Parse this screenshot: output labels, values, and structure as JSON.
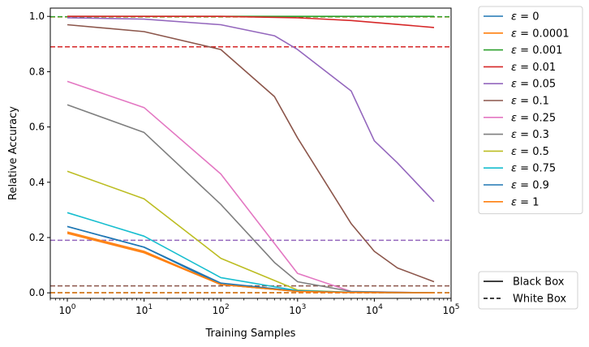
{
  "chart_data": {
    "type": "line",
    "xlabel": "Training Samples",
    "ylabel": "Relative Accuracy",
    "xscale": "log",
    "xlim": [
      0.6,
      100000
    ],
    "ylim": [
      -0.02,
      1.03
    ],
    "grid": false,
    "x_ticks": [
      {
        "value": 1,
        "base": "10",
        "exp": "0"
      },
      {
        "value": 10,
        "base": "10",
        "exp": "1"
      },
      {
        "value": 100,
        "base": "10",
        "exp": "2"
      },
      {
        "value": 1000,
        "base": "10",
        "exp": "3"
      },
      {
        "value": 10000,
        "base": "10",
        "exp": "4"
      },
      {
        "value": 100000,
        "base": "10",
        "exp": "5"
      }
    ],
    "y_ticks": [
      {
        "value": 0.0,
        "label": "0.0"
      },
      {
        "value": 0.2,
        "label": "0.2"
      },
      {
        "value": 0.4,
        "label": "0.4"
      },
      {
        "value": 0.6,
        "label": "0.6"
      },
      {
        "value": 0.8,
        "label": "0.8"
      },
      {
        "value": 1.0,
        "label": "1.0"
      }
    ],
    "series": [
      {
        "name": "ε = 0",
        "eps_label": "0",
        "color": "#1f77b4",
        "x": [
          1,
          10,
          100,
          1000,
          5000,
          60000
        ],
        "values": [
          0.24,
          0.165,
          0.03,
          0.005,
          0.002,
          0.0
        ],
        "white_box": 0.0
      },
      {
        "name": "ε = 0.0001",
        "eps_label": "0.0001",
        "color": "#ff7f0e",
        "x": [
          1,
          10,
          100,
          1000,
          5000,
          60000
        ],
        "values": [
          0.22,
          0.15,
          0.03,
          0.005,
          0.002,
          0.0
        ],
        "white_box": 0.998
      },
      {
        "name": "ε = 0.001",
        "eps_label": "0.001",
        "color": "#2ca02c",
        "x": [
          1,
          10,
          100,
          1000,
          5000,
          60000
        ],
        "values": [
          1.0,
          1.0,
          1.0,
          1.0,
          1.0,
          1.0
        ],
        "white_box": 0.999
      },
      {
        "name": "ε = 0.01",
        "eps_label": "0.01",
        "color": "#d62728",
        "x": [
          1,
          10,
          100,
          1000,
          5000,
          60000
        ],
        "values": [
          1.0,
          1.0,
          1.0,
          0.995,
          0.985,
          0.96
        ],
        "white_box": 0.89
      },
      {
        "name": "ε = 0.05",
        "eps_label": "0.05",
        "color": "#9467bd",
        "x": [
          1,
          10,
          100,
          500,
          1000,
          5000,
          10000,
          20000,
          60000
        ],
        "values": [
          0.995,
          0.99,
          0.97,
          0.93,
          0.88,
          0.73,
          0.55,
          0.47,
          0.33
        ],
        "white_box": 0.19
      },
      {
        "name": "ε = 0.1",
        "eps_label": "0.1",
        "color": "#8c564b",
        "x": [
          1,
          10,
          100,
          500,
          1000,
          5000,
          10000,
          20000,
          60000
        ],
        "values": [
          0.97,
          0.945,
          0.88,
          0.71,
          0.56,
          0.25,
          0.15,
          0.09,
          0.04
        ],
        "white_box": 0.025
      },
      {
        "name": "ε = 0.25",
        "eps_label": "0.25",
        "color": "#e377c2",
        "x": [
          1,
          10,
          100,
          1000,
          5000,
          60000
        ],
        "values": [
          0.765,
          0.67,
          0.43,
          0.07,
          0.005,
          0.0
        ],
        "white_box": 0.0
      },
      {
        "name": "ε = 0.3",
        "eps_label": "0.3",
        "color": "#7f7f7f",
        "x": [
          1,
          10,
          100,
          500,
          1000,
          5000,
          60000
        ],
        "values": [
          0.68,
          0.58,
          0.32,
          0.11,
          0.04,
          0.005,
          0.0
        ],
        "white_box": 0.0
      },
      {
        "name": "ε = 0.5",
        "eps_label": "0.5",
        "color": "#bcbd22",
        "x": [
          1,
          10,
          100,
          1000,
          5000,
          60000
        ],
        "values": [
          0.44,
          0.34,
          0.125,
          0.01,
          0.002,
          0.0
        ],
        "white_box": 0.0
      },
      {
        "name": "ε = 0.75",
        "eps_label": "0.75",
        "color": "#17becf",
        "x": [
          1,
          10,
          100,
          1000,
          5000,
          60000
        ],
        "values": [
          0.29,
          0.205,
          0.055,
          0.008,
          0.002,
          0.0
        ],
        "white_box": 0.0
      },
      {
        "name": "ε = 0.9",
        "eps_label": "0.9",
        "color": "#1f77b4",
        "x": [
          1,
          10,
          100,
          1000,
          5000,
          60000
        ],
        "values": [
          0.24,
          0.165,
          0.035,
          0.006,
          0.002,
          0.0
        ],
        "white_box": 0.0
      },
      {
        "name": "ε = 1",
        "eps_label": "1",
        "color": "#ff7f0e",
        "x": [
          1,
          10,
          100,
          1000,
          5000,
          60000
        ],
        "values": [
          0.215,
          0.145,
          0.03,
          0.005,
          0.001,
          0.0
        ],
        "white_box": 0.0
      }
    ],
    "style_legend": [
      {
        "label": "Black Box",
        "dash": "solid"
      },
      {
        "label": "White Box",
        "dash": "dashed"
      }
    ],
    "legend_position": "outside-right"
  }
}
